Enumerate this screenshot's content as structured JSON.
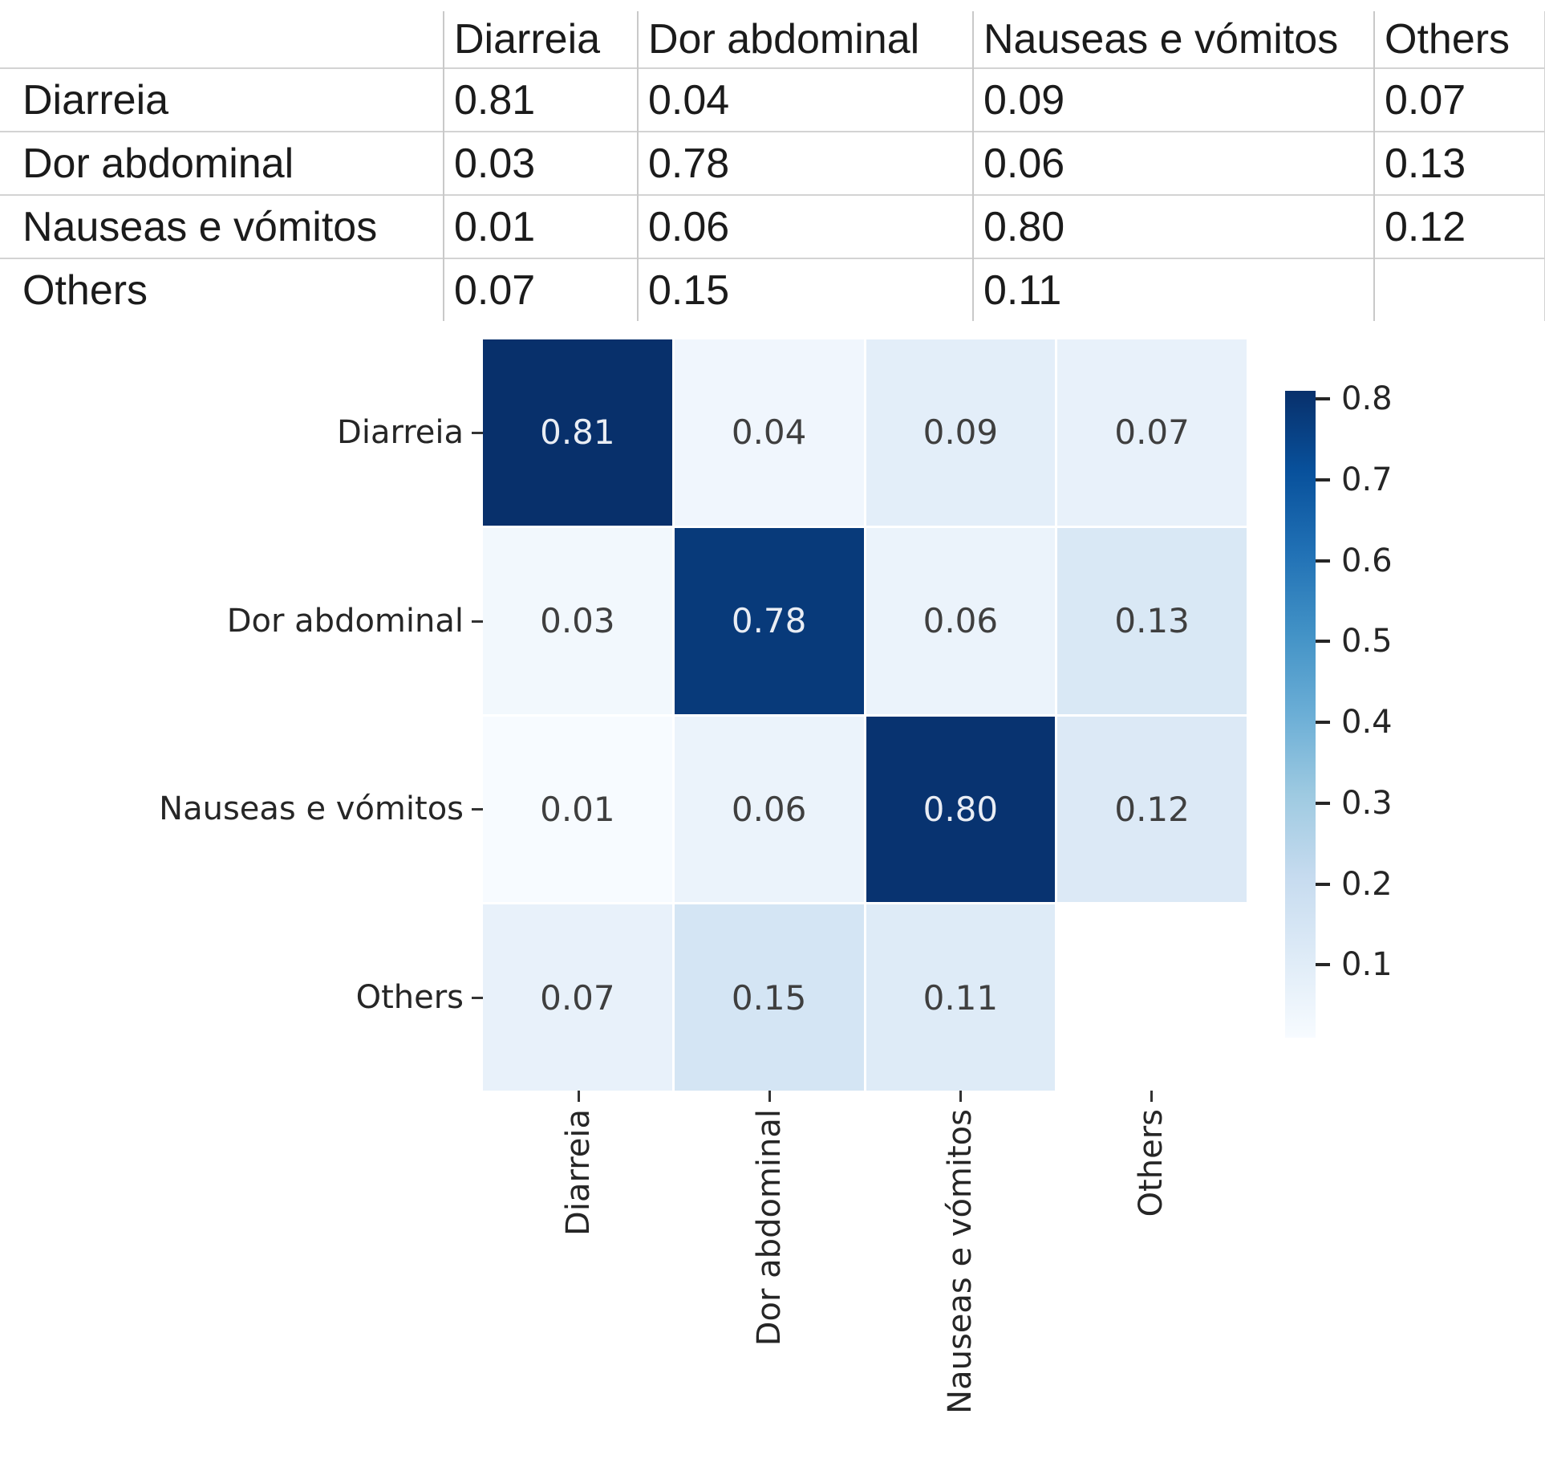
{
  "table": {
    "column_headers": [
      "Diarreia",
      "Dor abdominal",
      "Nauseas e vómitos",
      "Others"
    ],
    "rows": [
      {
        "label": "Diarreia",
        "values": [
          "0.81",
          "0.04",
          "0.09",
          "0.07"
        ]
      },
      {
        "label": "Dor abdominal",
        "values": [
          "0.03",
          "0.78",
          "0.06",
          "0.13"
        ]
      },
      {
        "label": "Nauseas e vómitos",
        "values": [
          "0.01",
          "0.06",
          "0.80",
          "0.12"
        ]
      },
      {
        "label": "Others",
        "values": [
          "0.07",
          "0.15",
          "0.11",
          ""
        ]
      }
    ]
  },
  "heatmap": {
    "row_labels": [
      "Diarreia",
      "Dor abdominal",
      "Nauseas e vómitos",
      "Others"
    ],
    "col_labels": [
      "Diarreia",
      "Dor abdominal",
      "Nauseas e vómitos",
      "Others"
    ],
    "values": [
      [
        0.81,
        0.04,
        0.09,
        0.07
      ],
      [
        0.03,
        0.78,
        0.06,
        0.13
      ],
      [
        0.01,
        0.06,
        0.8,
        0.12
      ],
      [
        0.07,
        0.15,
        0.11,
        null
      ]
    ],
    "display": [
      [
        "0.81",
        "0.04",
        "0.09",
        "0.07"
      ],
      [
        "0.03",
        "0.78",
        "0.06",
        "0.13"
      ],
      [
        "0.01",
        "0.06",
        "0.80",
        "0.12"
      ],
      [
        "0.07",
        "0.15",
        "0.11",
        ""
      ]
    ],
    "cell_colors": [
      [
        "#08306b",
        "#f0f6fd",
        "#e3eef9",
        "#e8f1fa"
      ],
      [
        "#f2f8fd",
        "#083a7a",
        "#ebf3fb",
        "#d9e8f5"
      ],
      [
        "#f7fbff",
        "#ebf3fb",
        "#083370",
        "#dce9f6"
      ],
      [
        "#e8f1fa",
        "#d4e5f4",
        "#deebf7",
        null
      ]
    ],
    "empty_cell_color": "#ffffff",
    "annot_light_text": "#e9edf4",
    "annot_dark_text": "#3f3f3f",
    "tick_color": "#333333"
  },
  "colorbar": {
    "tick_labels": [
      "0.8",
      "0.7",
      "0.6",
      "0.5",
      "0.4",
      "0.3",
      "0.2",
      "0.1"
    ],
    "tick_values": [
      0.8,
      0.7,
      0.6,
      0.5,
      0.4,
      0.3,
      0.2,
      0.1
    ],
    "vmin": 0.01,
    "vmax": 0.81,
    "gradient_stops": [
      "#08306b",
      "#08519c",
      "#2171b5",
      "#4292c6",
      "#6baed6",
      "#9ecae1",
      "#c6dbef",
      "#deebf7",
      "#f7fbff"
    ]
  },
  "chart_data": {
    "type": "heatmap",
    "title": "",
    "xlabel": "",
    "ylabel": "",
    "categories_x": [
      "Diarreia",
      "Dor abdominal",
      "Nauseas e vómitos",
      "Others"
    ],
    "categories_y": [
      "Diarreia",
      "Dor abdominal",
      "Nauseas e vómitos",
      "Others"
    ],
    "matrix": [
      [
        0.81,
        0.04,
        0.09,
        0.07
      ],
      [
        0.03,
        0.78,
        0.06,
        0.13
      ],
      [
        0.01,
        0.06,
        0.8,
        0.12
      ],
      [
        0.07,
        0.15,
        0.11,
        null
      ]
    ],
    "annotations_shown": true,
    "colormap": "Blues",
    "color_range": [
      0.01,
      0.81
    ],
    "colorbar_ticks": [
      0.8,
      0.7,
      0.6,
      0.5,
      0.4,
      0.3,
      0.2,
      0.1
    ],
    "legend_position": "right-colorbar",
    "grid": false,
    "notes": "Cell (Others, Others) is empty/blank in both the table and the heatmap"
  }
}
